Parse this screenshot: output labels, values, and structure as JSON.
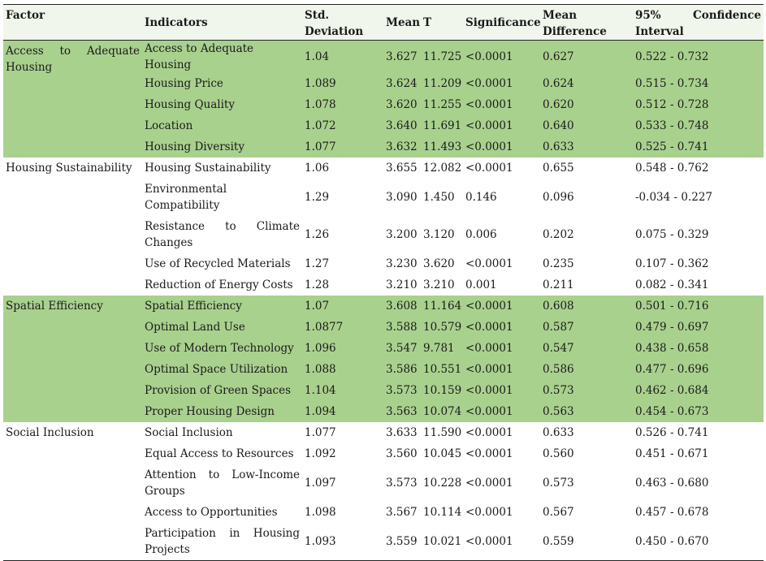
{
  "headers": {
    "factor": "Factor",
    "indicators": "Indicators",
    "std_deviation": "Std. Deviation",
    "mean": "Mean",
    "t": "T",
    "significance": "Significance",
    "mean_difference": "Mean Difference",
    "confidence_interval": "95% Confidence Interval"
  },
  "groups": [
    {
      "factor": "Access to Adequate Housing",
      "rows": [
        [
          "Access to Adequate Housing",
          "1.04",
          "3.627",
          "11.725",
          "<0.0001",
          "0.627",
          "0.522 - 0.732"
        ],
        [
          "Housing Price",
          "1.089",
          "3.624",
          "11.209",
          "<0.0001",
          "0.624",
          "0.515 - 0.734"
        ],
        [
          "Housing Quality",
          "1.078",
          "3.620",
          "11.255",
          "<0.0001",
          "0.620",
          "0.512 - 0.728"
        ],
        [
          "Location",
          "1.072",
          "3.640",
          "11.691",
          "<0.0001",
          "0.640",
          "0.533 - 0.748"
        ],
        [
          "Housing Diversity",
          "1.077",
          "3.632",
          "11.493",
          "<0.0001",
          "0.633",
          "0.525 - 0.741"
        ]
      ]
    },
    {
      "factor": "Housing Sustainability",
      "rows": [
        [
          "Housing Sustainability",
          "1.06",
          "3.655",
          "12.082",
          "<0.0001",
          "0.655",
          "0.548 - 0.762"
        ],
        [
          "Environmental Compatibility",
          "1.29",
          "3.090",
          "1.450",
          "0.146",
          "0.096",
          "-0.034 - 0.227"
        ],
        [
          "Resistance to Climate Changes",
          "1.26",
          "3.200",
          "3.120",
          "0.006",
          "0.202",
          "0.075 - 0.329"
        ],
        [
          "Use of Recycled Materials",
          "1.27",
          "3.230",
          "3.620",
          "<0.0001",
          "0.235",
          "0.107 - 0.362"
        ],
        [
          "Reduction of Energy Costs",
          "1.28",
          "3.210",
          "3.210",
          "0.001",
          "0.211",
          "0.082 - 0.341"
        ]
      ]
    },
    {
      "factor": "Spatial Efficiency",
      "rows": [
        [
          "Spatial Efficiency",
          "1.07",
          "3.608",
          "11.164",
          "<0.0001",
          "0.608",
          "0.501 - 0.716"
        ],
        [
          "Optimal Land Use",
          "1.0877",
          "3.588",
          "10.579",
          "<0.0001",
          "0.587",
          "0.479 - 0.697"
        ],
        [
          "Use of Modern Technology",
          "1.096",
          "3.547",
          "9.781",
          "<0.0001",
          "0.547",
          "0.438 - 0.658"
        ],
        [
          "Optimal Space Utilization",
          "1.088",
          "3.586",
          "10.551",
          "<0.0001",
          "0.586",
          "0.477 - 0.696"
        ],
        [
          "Provision of Green Spaces",
          "1.104",
          "3.573",
          "10.159",
          "<0.0001",
          "0.573",
          "0.462 - 0.684"
        ],
        [
          "Proper Housing Design",
          "1.094",
          "3.563",
          "10.074",
          "<0.0001",
          "0.563",
          "0.454 - 0.673"
        ]
      ]
    },
    {
      "factor": "Social Inclusion",
      "rows": [
        [
          "Social Inclusion",
          "1.077",
          "3.633",
          "11.590",
          "<0.0001",
          "0.633",
          "0.526 - 0.741"
        ],
        [
          "Equal Access to Resources",
          "1.092",
          "3.560",
          "10.045",
          "<0.0001",
          "0.560",
          "0.451 - 0.671"
        ],
        [
          "Attention to Low-Income Groups",
          "1.097",
          "3.573",
          "10.228",
          "<0.0001",
          "0.573",
          "0.463 - 0.680"
        ],
        [
          "Access to Opportunities",
          "1.098",
          "3.567",
          "10.114",
          "<0.0001",
          "0.567",
          "0.457 - 0.678"
        ],
        [
          "Participation in Housing Projects",
          "1.093",
          "3.559",
          "10.021",
          "<0.0001",
          "0.559",
          "0.450 - 0.670"
        ]
      ]
    }
  ]
}
